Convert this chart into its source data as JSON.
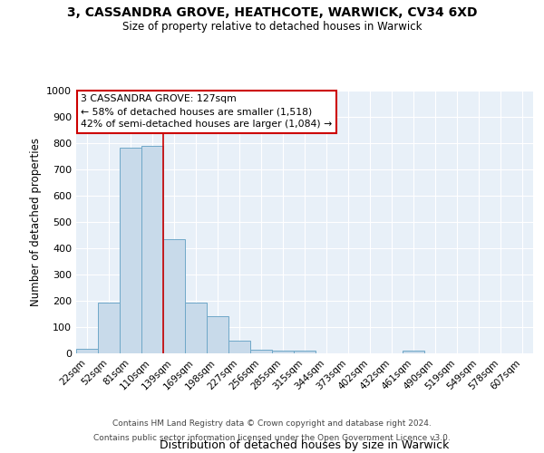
{
  "title1": "3, CASSANDRA GROVE, HEATHCOTE, WARWICK, CV34 6XD",
  "title2": "Size of property relative to detached houses in Warwick",
  "xlabel": "Distribution of detached houses by size in Warwick",
  "ylabel": "Number of detached properties",
  "bar_color": "#c8daea",
  "bar_edge_color": "#6fa8c8",
  "background_color": "#e8f0f8",
  "grid_color": "#ffffff",
  "categories": [
    "22sqm",
    "52sqm",
    "81sqm",
    "110sqm",
    "139sqm",
    "169sqm",
    "198sqm",
    "227sqm",
    "256sqm",
    "285sqm",
    "315sqm",
    "344sqm",
    "373sqm",
    "402sqm",
    "432sqm",
    "461sqm",
    "490sqm",
    "519sqm",
    "549sqm",
    "578sqm",
    "607sqm"
  ],
  "values": [
    18,
    193,
    783,
    788,
    435,
    192,
    140,
    50,
    15,
    10,
    10,
    0,
    0,
    0,
    0,
    10,
    0,
    0,
    0,
    0,
    0
  ],
  "annotation_line1": "3 CASSANDRA GROVE: 127sqm",
  "annotation_line2": "← 58% of detached houses are smaller (1,518)",
  "annotation_line3": "42% of semi-detached houses are larger (1,084) →",
  "annotation_box_color": "#ffffff",
  "annotation_box_edge": "#cc0000",
  "vline_color": "#cc0000",
  "ylim": [
    0,
    1000
  ],
  "yticks": [
    0,
    100,
    200,
    300,
    400,
    500,
    600,
    700,
    800,
    900,
    1000
  ],
  "footer_line1": "Contains HM Land Registry data © Crown copyright and database right 2024.",
  "footer_line2": "Contains public sector information licensed under the Open Government Licence v3.0.",
  "num_bins": 21,
  "bin_width": 29
}
